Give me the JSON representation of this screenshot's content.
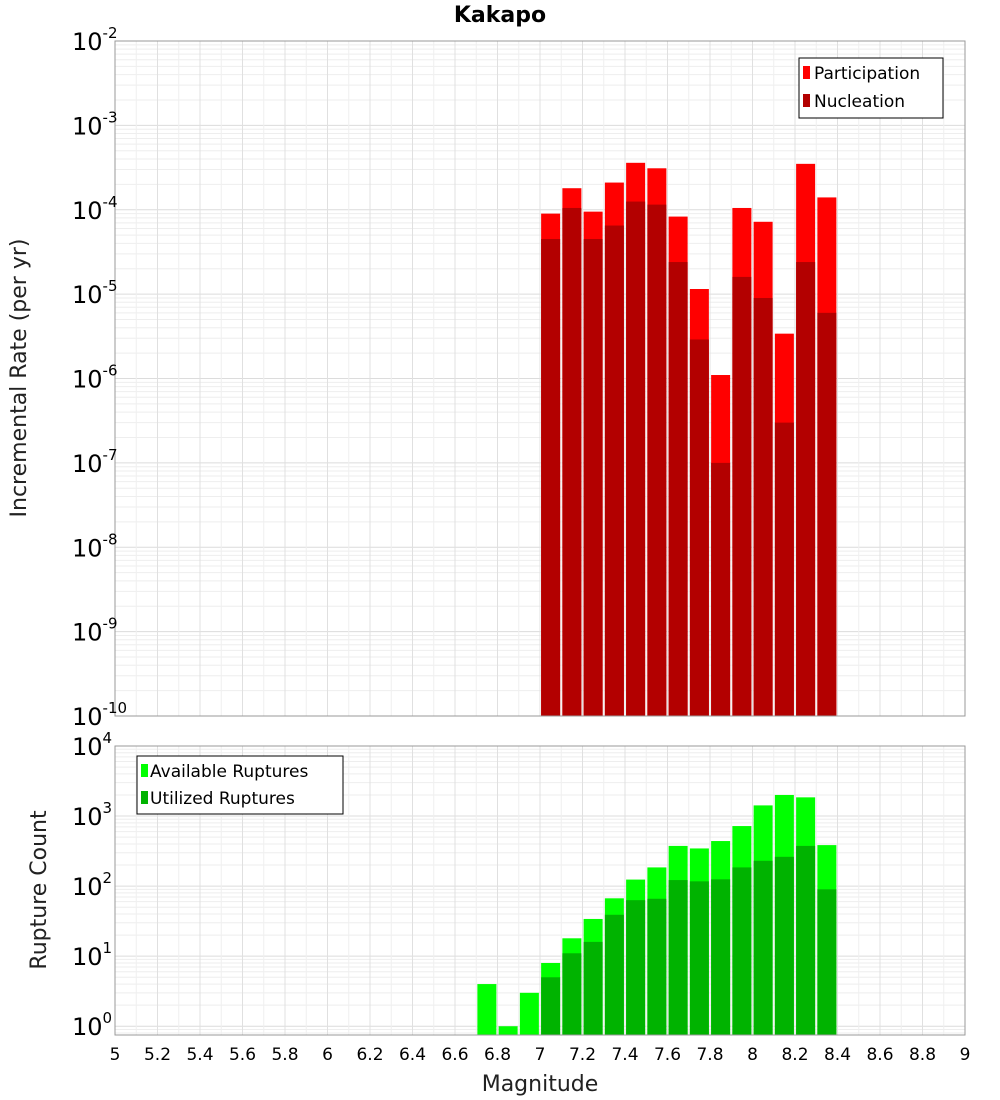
{
  "title": "Kakapo",
  "x_axis": {
    "label": "Magnitude",
    "ticks": [
      "5",
      "5.2",
      "5.4",
      "5.6",
      "5.8",
      "6",
      "6.2",
      "6.4",
      "6.6",
      "6.8",
      "7",
      "7.2",
      "7.4",
      "7.6",
      "7.8",
      "8",
      "8.2",
      "8.4",
      "8.6",
      "8.8",
      "9"
    ]
  },
  "top_panel": {
    "ylabel": "Incremental Rate (per yr)",
    "ytick_exponents": [
      "-10",
      "-9",
      "-8",
      "-7",
      "-6",
      "-5",
      "-4",
      "-3",
      "-2"
    ],
    "ytick_base": "10",
    "legend": [
      "Participation",
      "Nucleation"
    ],
    "colors": {
      "participation": "#ff0000",
      "nucleation": "#b30000"
    }
  },
  "bottom_panel": {
    "ylabel": "Rupture Count",
    "ytick_exponents": [
      "0",
      "1",
      "2",
      "3",
      "4"
    ],
    "ytick_base": "10",
    "legend": [
      "Available Ruptures",
      "Utilized Ruptures"
    ],
    "colors": {
      "available": "#00ff00",
      "utilized": "#00b300"
    }
  },
  "chart_data": [
    {
      "type": "bar",
      "title": "Kakapo",
      "xlabel": "Magnitude",
      "ylabel": "Incremental Rate (per yr)",
      "xlim": [
        5,
        9
      ],
      "ylim": [
        1e-10,
        0.01
      ],
      "yscale": "log",
      "grid": true,
      "legend_position": "top-right",
      "x": [
        7.05,
        7.15,
        7.25,
        7.35,
        7.45,
        7.55,
        7.65,
        7.75,
        7.85,
        7.95,
        8.05,
        8.15,
        8.25,
        8.35
      ],
      "series": [
        {
          "name": "Participation",
          "values": [
            9e-05,
            0.00018,
            9.5e-05,
            0.00021,
            0.00036,
            0.00031,
            8.3e-05,
            1.15e-05,
            1.1e-06,
            0.000105,
            7.2e-05,
            3.4e-06,
            0.00035,
            0.00014
          ]
        },
        {
          "name": "Nucleation",
          "values": [
            4.5e-05,
            0.000105,
            4.5e-05,
            6.5e-05,
            0.000125,
            0.000115,
            2.4e-05,
            2.9e-06,
            1e-07,
            1.6e-05,
            9e-06,
            3e-07,
            2.4e-05,
            6e-06
          ]
        }
      ]
    },
    {
      "type": "bar",
      "xlabel": "Magnitude",
      "ylabel": "Rupture Count",
      "xlim": [
        5,
        9
      ],
      "ylim": [
        0.75,
        10000
      ],
      "yscale": "log",
      "grid": true,
      "legend_position": "top-left",
      "x": [
        6.75,
        6.85,
        6.95,
        7.05,
        7.15,
        7.25,
        7.35,
        7.45,
        7.55,
        7.65,
        7.75,
        7.85,
        7.95,
        8.05,
        8.15,
        8.25,
        8.35
      ],
      "series": [
        {
          "name": "Available Ruptures",
          "values": [
            4,
            1,
            3,
            8,
            18,
            34,
            67,
            124,
            185,
            375,
            345,
            440,
            720,
            1420,
            2000,
            1850,
            385
          ]
        },
        {
          "name": "Utilized Ruptures",
          "values": [
            0,
            0,
            0,
            5,
            11,
            16,
            39,
            63,
            66,
            122,
            117,
            125,
            185,
            230,
            262,
            375,
            90
          ]
        }
      ]
    }
  ]
}
